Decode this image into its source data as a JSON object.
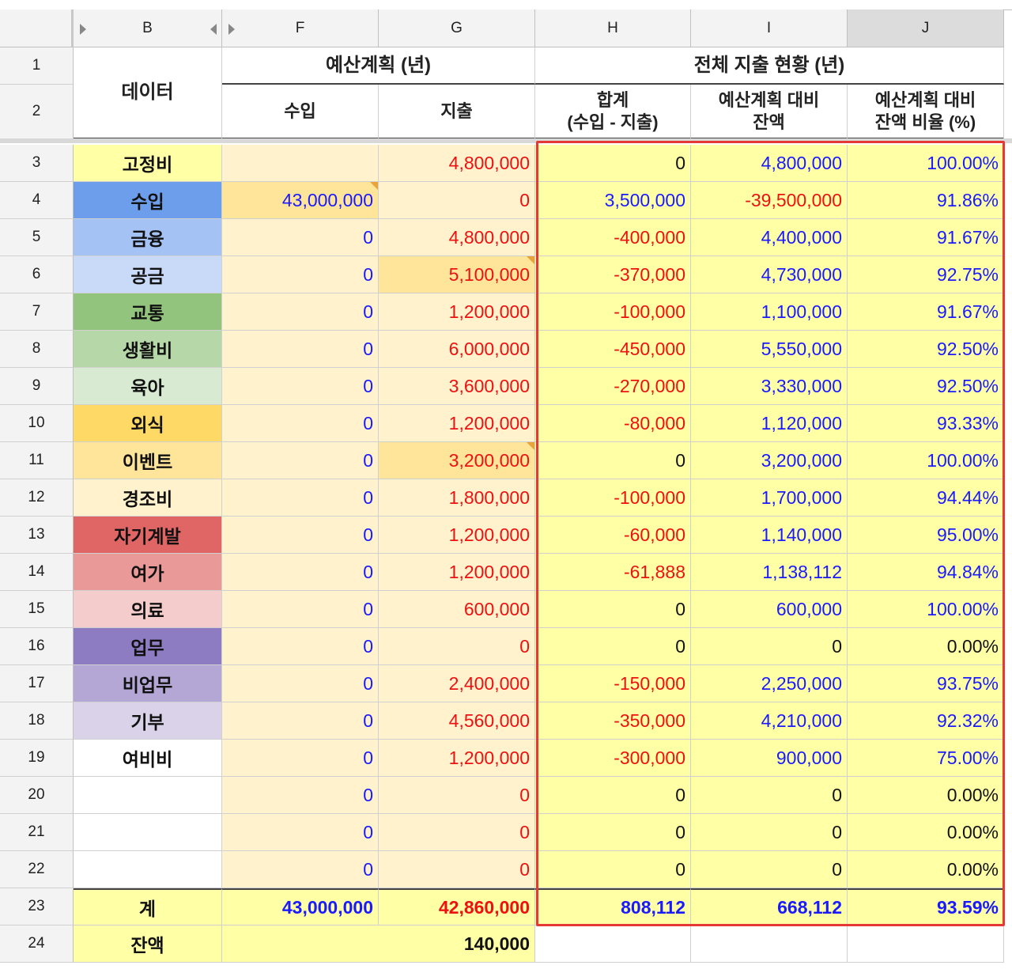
{
  "columns": [
    {
      "key": "row",
      "label": ""
    },
    {
      "key": "B",
      "label": "B"
    },
    {
      "key": "F",
      "label": "F"
    },
    {
      "key": "G",
      "label": "G"
    },
    {
      "key": "H",
      "label": "H"
    },
    {
      "key": "I",
      "label": "I"
    },
    {
      "key": "J",
      "label": "J"
    }
  ],
  "selected_column": "J",
  "headers": {
    "data": "데이터",
    "budget_plan": "예산계획 (년)",
    "income": "수입",
    "expense": "지출",
    "status": "전체 지출 현황 (년)",
    "total_label_line1": "합계",
    "total_label_line2": "(수입 - 지출)",
    "remain_line1": "예산계획 대비",
    "remain_line2": "잔액",
    "ratio_line1": "예산계획 대비",
    "ratio_line2": "잔액 비율 (%)"
  },
  "rows": [
    {
      "row": "3",
      "label": "고정비",
      "F": "",
      "G": "4,800,000",
      "H": "0",
      "I": "4,800,000",
      "J": "100.00%"
    },
    {
      "row": "4",
      "label": "수입",
      "F": "43,000,000",
      "G": "0",
      "H": "3,500,000",
      "I": "-39,500,000",
      "J": "91.86%"
    },
    {
      "row": "5",
      "label": "금융",
      "F": "0",
      "G": "4,800,000",
      "H": "-400,000",
      "I": "4,400,000",
      "J": "91.67%"
    },
    {
      "row": "6",
      "label": "공금",
      "F": "0",
      "G": "5,100,000",
      "H": "-370,000",
      "I": "4,730,000",
      "J": "92.75%"
    },
    {
      "row": "7",
      "label": "교통",
      "F": "0",
      "G": "1,200,000",
      "H": "-100,000",
      "I": "1,100,000",
      "J": "91.67%"
    },
    {
      "row": "8",
      "label": "생활비",
      "F": "0",
      "G": "6,000,000",
      "H": "-450,000",
      "I": "5,550,000",
      "J": "92.50%"
    },
    {
      "row": "9",
      "label": "육아",
      "F": "0",
      "G": "3,600,000",
      "H": "-270,000",
      "I": "3,330,000",
      "J": "92.50%"
    },
    {
      "row": "10",
      "label": "외식",
      "F": "0",
      "G": "1,200,000",
      "H": "-80,000",
      "I": "1,120,000",
      "J": "93.33%"
    },
    {
      "row": "11",
      "label": "이벤트",
      "F": "0",
      "G": "3,200,000",
      "H": "0",
      "I": "3,200,000",
      "J": "100.00%"
    },
    {
      "row": "12",
      "label": "경조비",
      "F": "0",
      "G": "1,800,000",
      "H": "-100,000",
      "I": "1,700,000",
      "J": "94.44%"
    },
    {
      "row": "13",
      "label": "자기계발",
      "F": "0",
      "G": "1,200,000",
      "H": "-60,000",
      "I": "1,140,000",
      "J": "95.00%"
    },
    {
      "row": "14",
      "label": "여가",
      "F": "0",
      "G": "1,200,000",
      "H": "-61,888",
      "I": "1,138,112",
      "J": "94.84%"
    },
    {
      "row": "15",
      "label": "의료",
      "F": "0",
      "G": "600,000",
      "H": "0",
      "I": "600,000",
      "J": "100.00%"
    },
    {
      "row": "16",
      "label": "업무",
      "F": "0",
      "G": "0",
      "H": "0",
      "I": "0",
      "J": "0.00%"
    },
    {
      "row": "17",
      "label": "비업무",
      "F": "0",
      "G": "2,400,000",
      "H": "-150,000",
      "I": "2,250,000",
      "J": "93.75%"
    },
    {
      "row": "18",
      "label": "기부",
      "F": "0",
      "G": "4,560,000",
      "H": "-350,000",
      "I": "4,210,000",
      "J": "92.32%"
    },
    {
      "row": "19",
      "label": "여비비",
      "F": "0",
      "G": "1,200,000",
      "H": "-300,000",
      "I": "900,000",
      "J": "75.00%"
    },
    {
      "row": "20",
      "label": "",
      "F": "0",
      "G": "0",
      "H": "0",
      "I": "0",
      "J": "0.00%"
    },
    {
      "row": "21",
      "label": "",
      "F": "0",
      "G": "0",
      "H": "0",
      "I": "0",
      "J": "0.00%"
    },
    {
      "row": "22",
      "label": "",
      "F": "0",
      "G": "0",
      "H": "0",
      "I": "0",
      "J": "0.00%"
    }
  ],
  "total_row": {
    "row": "23",
    "label": "계",
    "F": "43,000,000",
    "G": "42,860,000",
    "H": "808,112",
    "I": "668,112",
    "J": "93.59%"
  },
  "balance_row": {
    "row": "24",
    "label": "잔액",
    "value": "140,000"
  },
  "label_colors": {
    "고정비": "#ffffa6",
    "수입": "#6d9eeb",
    "금융": "#a4c2f4",
    "공금": "#c9daf8",
    "교통": "#93c47d",
    "생활비": "#b6d7a8",
    "육아": "#d9ead3",
    "외식": "#ffd966",
    "이벤트": "#ffe599",
    "경조비": "#fff2cc",
    "자기계발": "#e06666",
    "여가": "#ea9999",
    "의료": "#f4cccc",
    "업무": "#8e7cc3",
    "비업무": "#b4a7d6",
    "기부": "#d9d2e9",
    "여비비": "#ffffff"
  },
  "cell_colors": {
    "budget_fill": "#fff2cc",
    "budget_highlight": "#ffe599",
    "status_fill": "#ffffa6",
    "highlight_border": "#e53935"
  },
  "text_colors": {
    "positive": "#1a1aff",
    "negative": "#ee1111",
    "neutral": "#111111"
  }
}
